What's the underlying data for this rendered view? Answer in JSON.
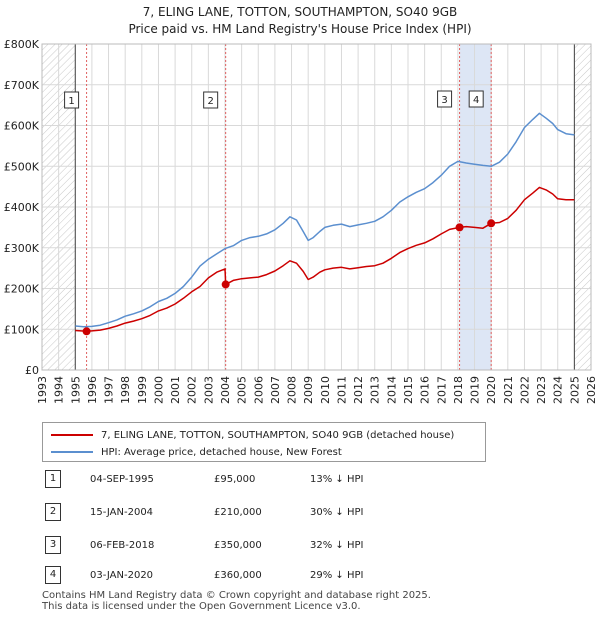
{
  "title": {
    "line1": "7, ELING LANE, TOTTON, SOUTHAMPTON, SO40 9GB",
    "line2": "Price paid vs. HM Land Registry's House Price Index (HPI)"
  },
  "legend": [
    {
      "label": "7, ELING LANE, TOTTON, SOUTHAMPTON, SO40 9GB (detached house)",
      "color": "#cc0000"
    },
    {
      "label": "HPI: Average price, detached house, New Forest",
      "color": "#5b8fcf"
    }
  ],
  "sales": [
    {
      "num": "1",
      "date": "04-SEP-1995",
      "price": "£95,000",
      "hpi": "13% ↓ HPI"
    },
    {
      "num": "2",
      "date": "15-JAN-2004",
      "price": "£210,000",
      "hpi": "30% ↓ HPI"
    },
    {
      "num": "3",
      "date": "06-FEB-2018",
      "price": "£350,000",
      "hpi": "32% ↓ HPI"
    },
    {
      "num": "4",
      "date": "03-JAN-2020",
      "price": "£360,000",
      "hpi": "29% ↓ HPI"
    }
  ],
  "footer": {
    "line1": "Contains HM Land Registry data © Crown copyright and database right 2025.",
    "line2": "This data is licensed under the Open Government Licence v3.0."
  },
  "chart_data": {
    "type": "line",
    "title": "7, ELING LANE, TOTTON, SOUTHAMPTON, SO40 9GB — Price paid vs. HM Land Registry's House Price Index (HPI)",
    "xlabel": "",
    "ylabel": "",
    "xlim": [
      1993,
      2026
    ],
    "ylim": [
      0,
      800000
    ],
    "x_ticks": [
      "1993",
      "1994",
      "1995",
      "1996",
      "1997",
      "1998",
      "1999",
      "2000",
      "2001",
      "2002",
      "2003",
      "2004",
      "2005",
      "2006",
      "2007",
      "2008",
      "2009",
      "2010",
      "2011",
      "2012",
      "2013",
      "2014",
      "2015",
      "2016",
      "2017",
      "2018",
      "2019",
      "2020",
      "2021",
      "2022",
      "2023",
      "2024",
      "2025",
      "2026"
    ],
    "y_ticks": [
      {
        "value": 0,
        "label": "£0"
      },
      {
        "value": 100000,
        "label": "£100K"
      },
      {
        "value": 200000,
        "label": "£200K"
      },
      {
        "value": 300000,
        "label": "£300K"
      },
      {
        "value": 400000,
        "label": "£400K"
      },
      {
        "value": 500000,
        "label": "£500K"
      },
      {
        "value": 600000,
        "label": "£600K"
      },
      {
        "value": 700000,
        "label": "£700K"
      },
      {
        "value": 800000,
        "label": "£800K"
      }
    ],
    "grid": true,
    "hatched_ranges": [
      [
        1993,
        1995.0
      ],
      [
        2025.0,
        2026
      ]
    ],
    "shaded_span": [
      2018.1,
      2020.0
    ],
    "series": [
      {
        "name": "HPI: Average price, detached house, New Forest",
        "color": "#5b8fcf",
        "x": [
          1995.0,
          1995.5,
          1996,
          1996.5,
          1997,
          1997.5,
          1998,
          1998.5,
          1999,
          1999.5,
          2000,
          2000.5,
          2001,
          2001.5,
          2002,
          2002.5,
          2003,
          2003.5,
          2004,
          2004.5,
          2005,
          2005.5,
          2006,
          2006.5,
          2007,
          2007.5,
          2007.9,
          2008.3,
          2008.7,
          2009.0,
          2009.3,
          2009.7,
          2010,
          2010.5,
          2011,
          2011.5,
          2012,
          2012.5,
          2013,
          2013.5,
          2014,
          2014.5,
          2015,
          2015.5,
          2016,
          2016.5,
          2017,
          2017.5,
          2018,
          2018.5,
          2019,
          2019.5,
          2020,
          2020.5,
          2021,
          2021.5,
          2022,
          2022.5,
          2022.9,
          2023.3,
          2023.7,
          2024,
          2024.5,
          2025.0
        ],
        "values": [
          108000,
          106000,
          107000,
          110000,
          116000,
          123000,
          132000,
          138000,
          145000,
          155000,
          168000,
          176000,
          188000,
          205000,
          228000,
          255000,
          272000,
          285000,
          298000,
          305000,
          318000,
          325000,
          328000,
          334000,
          344000,
          360000,
          376000,
          368000,
          340000,
          318000,
          325000,
          340000,
          350000,
          355000,
          358000,
          352000,
          356000,
          360000,
          365000,
          376000,
          392000,
          412000,
          425000,
          436000,
          445000,
          460000,
          478000,
          500000,
          512000,
          508000,
          505000,
          502000,
          500000,
          510000,
          530000,
          560000,
          595000,
          615000,
          630000,
          618000,
          605000,
          590000,
          580000,
          577000
        ]
      },
      {
        "name": "7, ELING LANE, TOTTON, SOUTHAMPTON, SO40 9GB (detached house)",
        "color": "#cc0000",
        "x": [
          1995.0,
          1995.68,
          1996,
          1996.5,
          1997,
          1997.5,
          1998,
          1998.5,
          1999,
          1999.5,
          2000,
          2000.5,
          2001,
          2001.5,
          2002,
          2002.5,
          2003,
          2003.5,
          2004.0,
          2004.04,
          2004.5,
          2005,
          2005.5,
          2006,
          2006.5,
          2007,
          2007.5,
          2007.9,
          2008.3,
          2008.7,
          2009.0,
          2009.3,
          2009.7,
          2010,
          2010.5,
          2011,
          2011.5,
          2012,
          2012.5,
          2013,
          2013.5,
          2014,
          2014.5,
          2015,
          2015.5,
          2016,
          2016.5,
          2017,
          2017.5,
          2018.1,
          2018.5,
          2019,
          2019.5,
          2020.0,
          2020.5,
          2021,
          2021.5,
          2022,
          2022.5,
          2022.9,
          2023.3,
          2023.7,
          2024,
          2024.5,
          2025.0
        ],
        "values": [
          97000,
          95000,
          96000,
          98000,
          102000,
          108000,
          115000,
          120000,
          126000,
          134000,
          145000,
          152000,
          162000,
          176000,
          192000,
          205000,
          226000,
          240000,
          248000,
          210000,
          220000,
          224000,
          226000,
          228000,
          234000,
          243000,
          256000,
          268000,
          262000,
          242000,
          222000,
          228000,
          240000,
          246000,
          250000,
          252000,
          248000,
          251000,
          254000,
          256000,
          262000,
          274000,
          288000,
          298000,
          306000,
          312000,
          322000,
          334000,
          345000,
          350000,
          352000,
          350000,
          348000,
          360000,
          362000,
          372000,
          392000,
          418000,
          434000,
          448000,
          442000,
          432000,
          420000,
          418000,
          418000
        ]
      }
    ],
    "sale_markers": [
      {
        "num": "1",
        "x": 1995.68,
        "y": 95000
      },
      {
        "num": "2",
        "x": 2004.04,
        "y": 210000
      },
      {
        "num": "3",
        "x": 2018.1,
        "y": 350000
      },
      {
        "num": "4",
        "x": 2020.0,
        "y": 360000
      }
    ]
  }
}
